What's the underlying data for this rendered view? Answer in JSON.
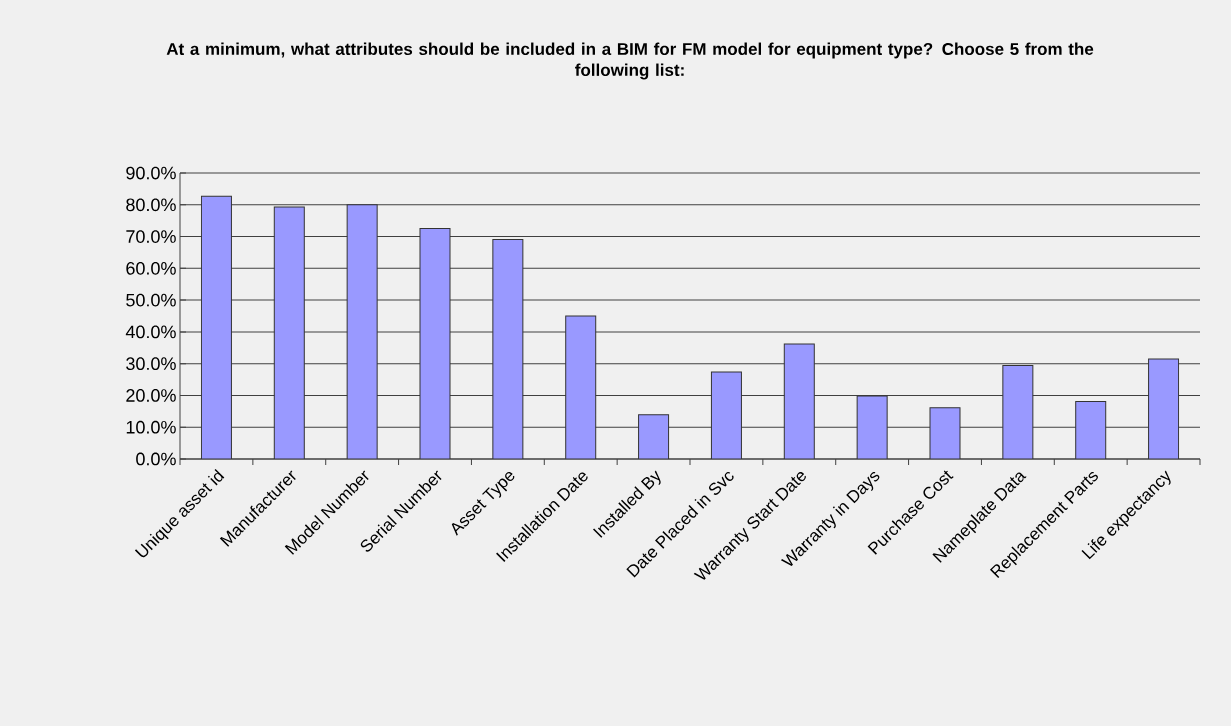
{
  "chart_data": {
    "type": "bar",
    "title": "At a minimum, what attributes should be included in a BIM for FM model for equipment type? Choose 5 from the following list:",
    "categories": [
      "Unique asset id",
      "Manufacturer",
      "Model Number",
      "Serial Number",
      "Asset Type",
      "Installation Date",
      "Installed By",
      "Date Placed in Svc",
      "Warranty Start Date",
      "Warranty in Days",
      "Purchase Cost",
      "Nameplate Data",
      "Replacement Parts",
      "Life expectancy"
    ],
    "values": [
      82.7,
      79.3,
      80.0,
      72.5,
      69.1,
      45.0,
      13.9,
      27.4,
      36.2,
      19.8,
      16.1,
      29.4,
      18.1,
      31.5
    ],
    "color": "#9999ff",
    "ylim": [
      0,
      90
    ],
    "yticks": [
      {
        "value": 0,
        "label": "0.0%"
      },
      {
        "value": 10,
        "label": "10.0%"
      },
      {
        "value": 20,
        "label": "20.0%"
      },
      {
        "value": 30,
        "label": "30.0%"
      },
      {
        "value": 40,
        "label": "40.0%"
      },
      {
        "value": 50,
        "label": "50.0%"
      },
      {
        "value": 60,
        "label": "60.0%"
      },
      {
        "value": 70,
        "label": "70.0%"
      },
      {
        "value": 80,
        "label": "80.0%"
      },
      {
        "value": 90,
        "label": "90.0%"
      }
    ],
    "grid": "y"
  }
}
